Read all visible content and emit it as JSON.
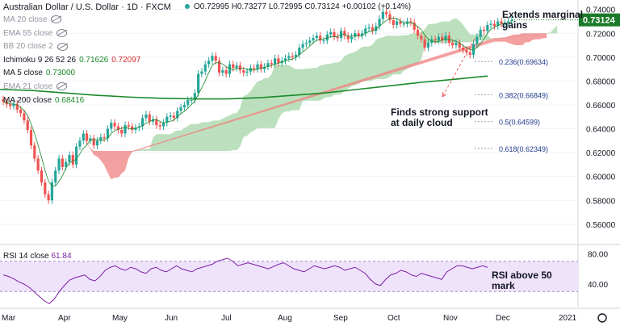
{
  "header": {
    "title": "Australian Dollar / U.S. Dollar · 1D · FXCM",
    "ohlc": "O0.72995  H0.73277  L0.72995  C0.73124  +0.00102 (+0.14%)"
  },
  "legend": [
    {
      "label": "MA 20 close",
      "value": "",
      "color": "#9598a1",
      "eye": true
    },
    {
      "label": "EMA 55 close",
      "value": "",
      "color": "#9598a1",
      "eye": true
    },
    {
      "label": "BB 20 close 2",
      "value": "",
      "color": "#9598a1",
      "eye": true
    },
    {
      "label": "Ichimoku 9 26 52 26",
      "value": "0.71626",
      "value2": "0.72097",
      "color": "#131722",
      "eye": false
    },
    {
      "label": "MA 5 close",
      "value": "0.73000",
      "color": "#131722",
      "eye": false
    },
    {
      "label": "EMA 21 close",
      "value": "",
      "color": "#9598a1",
      "eye": true
    },
    {
      "label": "MA 200 close",
      "value": "0.68416",
      "color": "#131722",
      "eye": false
    }
  ],
  "colors": {
    "up": "#26a69a",
    "down": "#ef5350",
    "ma200": "#1b8a2a",
    "ma5": "#1b8a2a",
    "cloud_bull": "#a5d6a7",
    "cloud_bear": "#f08080",
    "rsi": "#7b1fa2",
    "rsi_band": "#efe3fb",
    "price_tag": "#1b7a2a",
    "fib": "#1e3a8a"
  },
  "chart_data": {
    "type": "candlestick",
    "symbol": "AUDUSD",
    "timeframe": "1D",
    "y_axis": {
      "min": 0.545,
      "max": 0.7425,
      "ticks": [
        "0.74000",
        "0.72000",
        "0.70000",
        "0.68000",
        "0.66000",
        "0.64000",
        "0.62000",
        "0.60000",
        "0.58000",
        "0.56000"
      ],
      "tick_values": [
        0.74,
        0.72,
        0.7,
        0.68,
        0.66,
        0.64,
        0.62,
        0.6,
        0.58,
        0.56
      ]
    },
    "x_axis": {
      "labels": [
        "Mar",
        "Apr",
        "May",
        "Jun",
        "Jul",
        "Aug",
        "Sep",
        "Oct",
        "Nov",
        "Dec",
        "2021"
      ]
    },
    "last_price": "0.73124",
    "candles_close": [
      0.6628,
      0.6605,
      0.659,
      0.661,
      0.656,
      0.653,
      0.647,
      0.639,
      0.626,
      0.615,
      0.605,
      0.595,
      0.585,
      0.58,
      0.595,
      0.605,
      0.615,
      0.608,
      0.612,
      0.618,
      0.61,
      0.625,
      0.63,
      0.636,
      0.63,
      0.632,
      0.626,
      0.63,
      0.633,
      0.632,
      0.64,
      0.645,
      0.642,
      0.639,
      0.636,
      0.643,
      0.642,
      0.639,
      0.641,
      0.642,
      0.649,
      0.652,
      0.646,
      0.648,
      0.643,
      0.642,
      0.645,
      0.65,
      0.651,
      0.649,
      0.655,
      0.658,
      0.66,
      0.664,
      0.664,
      0.67,
      0.686,
      0.688,
      0.694,
      0.697,
      0.701,
      0.697,
      0.687,
      0.689,
      0.686,
      0.694,
      0.691,
      0.693,
      0.689,
      0.687,
      0.688,
      0.691,
      0.69,
      0.694,
      0.69,
      0.692,
      0.695,
      0.694,
      0.699,
      0.695,
      0.697,
      0.699,
      0.701,
      0.7,
      0.702,
      0.708,
      0.711,
      0.712,
      0.714,
      0.716,
      0.718,
      0.714,
      0.714,
      0.719,
      0.721,
      0.717,
      0.716,
      0.722,
      0.718,
      0.715,
      0.717,
      0.72,
      0.718,
      0.72,
      0.724,
      0.725,
      0.722,
      0.726,
      0.732,
      0.738,
      0.736,
      0.731,
      0.727,
      0.73,
      0.728,
      0.728,
      0.73,
      0.729,
      0.723,
      0.718,
      0.715,
      0.708,
      0.712,
      0.715,
      0.714,
      0.717,
      0.714,
      0.718,
      0.712,
      0.71,
      0.712,
      0.708,
      0.706,
      0.704,
      0.702,
      0.711,
      0.717,
      0.723,
      0.722,
      0.727,
      0.728,
      0.726,
      0.73,
      0.728,
      0.729,
      0.73,
      0.7312
    ],
    "ma200": [
      0.673,
      0.672,
      0.67,
      0.668,
      0.6665,
      0.6655,
      0.665,
      0.665,
      0.666,
      0.668,
      0.67,
      0.673,
      0.676,
      0.679,
      0.6815,
      0.6842
    ],
    "ichimoku": {
      "tenkan_last": "0.71626",
      "kijun_last": "0.72097"
    },
    "fibonacci": [
      {
        "level": 0.236,
        "price": 0.69634,
        "label": "0.236(0.69634)"
      },
      {
        "level": 0.382,
        "price": 0.66849,
        "label": "0.382(0.66849)"
      },
      {
        "level": 0.5,
        "price": 0.64599,
        "label": "0.5(0.64599)"
      },
      {
        "level": 0.618,
        "price": 0.62349,
        "label": "0.618(0.62349)"
      }
    ],
    "rsi": {
      "label": "RSI 14 close",
      "value": "61.84",
      "ticks": [
        "80.00",
        "40.00"
      ],
      "tick_values": [
        80,
        40
      ],
      "band": [
        30,
        70
      ],
      "range": [
        10,
        90
      ],
      "values": [
        52,
        50,
        47,
        43,
        40,
        36,
        30,
        24,
        18,
        14,
        20,
        30,
        38,
        45,
        48,
        50,
        52,
        46,
        44,
        50,
        58,
        62,
        64,
        60,
        58,
        62,
        60,
        56,
        54,
        60,
        62,
        58,
        56,
        60,
        64,
        60,
        58,
        56,
        60,
        62,
        64,
        66,
        70,
        72,
        74,
        70,
        64,
        66,
        68,
        66,
        64,
        62,
        60,
        63,
        66,
        68,
        64,
        60,
        58,
        56,
        60,
        64,
        62,
        60,
        62,
        64,
        62,
        58,
        60,
        62,
        58,
        54,
        46,
        40,
        38,
        46,
        52,
        54,
        58,
        56,
        52,
        50,
        54,
        52,
        50,
        48,
        46,
        56,
        60,
        64,
        64,
        62,
        60,
        62,
        64,
        61.84
      ]
    },
    "annotations": [
      "Extends marginal gains",
      "Finds strong support at daily cloud",
      "RSI above 50 mark"
    ]
  },
  "annotations": {
    "top": {
      "l1": "Extends marginal",
      "l2": "gains"
    },
    "support": {
      "l1": "Finds strong support",
      "l2": "at daily cloud"
    },
    "rsi": {
      "l1": "RSI above 50",
      "l2": "mark"
    }
  }
}
